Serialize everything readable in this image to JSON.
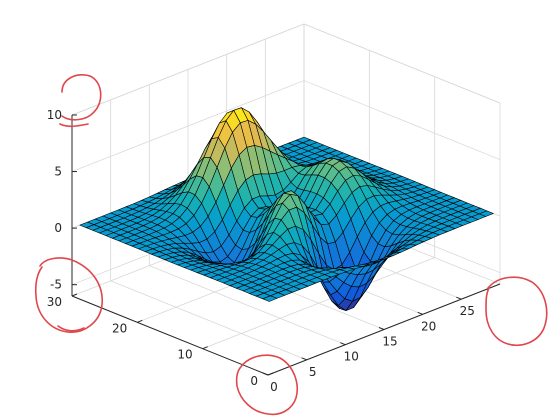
{
  "chart_data": {
    "type": "surface",
    "title": "",
    "xlabel": "",
    "ylabel": "",
    "zlabel": "",
    "function": "peaks",
    "grid_size": 30,
    "xlim": [
      0,
      30
    ],
    "ylim": [
      0,
      30
    ],
    "zlim": [
      -6,
      10
    ],
    "x_ticks": [
      "0",
      "5",
      "10",
      "15",
      "20",
      "25"
    ],
    "y_ticks": [
      "0",
      "10",
      "20",
      "30"
    ],
    "z_ticks": [
      "-5",
      "0",
      "5",
      "10"
    ],
    "colormap": "parula",
    "edge_color": "#000000",
    "grid": true
  },
  "annotations": {
    "circle_color": "#e0474c",
    "circled_labels": [
      "z-tick 10",
      "y-tick 30 / z-tick -5",
      "x-tick 0 / y-tick 0",
      "x-tick 25"
    ]
  }
}
